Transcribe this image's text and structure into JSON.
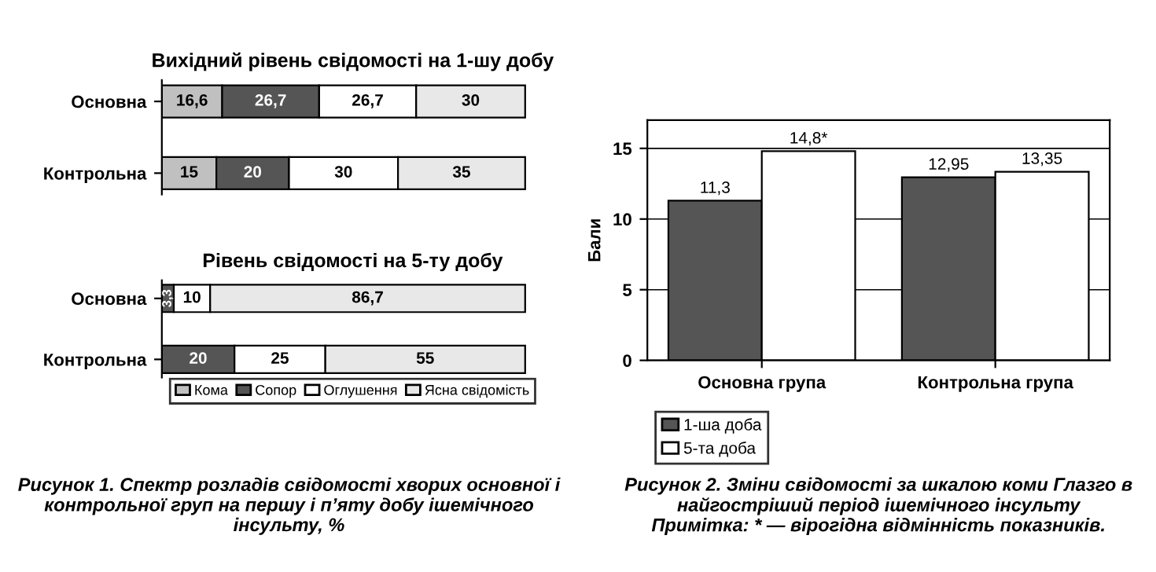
{
  "chart_data": [
    {
      "type": "bar",
      "orientation": "horizontal",
      "stacked": true,
      "title": "Вихідний рівень свідомості на 1-шу добу",
      "categories": [
        "Основна",
        "Контрольна"
      ],
      "tick_labels": "y",
      "legend": "bottom",
      "series": [
        {
          "name": "Кома",
          "color": "#c0c0c0",
          "values": [
            16.6,
            15
          ],
          "value_labels": [
            "16,6",
            "15"
          ]
        },
        {
          "name": "Сопор",
          "color": "#555555",
          "values": [
            26.7,
            20
          ],
          "value_labels": [
            "26,7",
            "20"
          ]
        },
        {
          "name": "Оглушення",
          "color": "#ffffff",
          "values": [
            26.7,
            30
          ],
          "value_labels": [
            "26,7",
            "30"
          ]
        },
        {
          "name": "Ясна свідомість",
          "color": "#e8e8e8",
          "values": [
            30,
            35
          ],
          "value_labels": [
            "30",
            "35"
          ]
        }
      ]
    },
    {
      "type": "bar",
      "orientation": "horizontal",
      "stacked": true,
      "title": "Рівень свідомості на 5-ту добу",
      "categories": [
        "Основна",
        "Контрольна"
      ],
      "tick_labels": "y",
      "series": [
        {
          "color": "#c0c0c0",
          "values": [
            0,
            0
          ],
          "value_labels": [
            null,
            null
          ]
        },
        {
          "color": "#555555",
          "values": [
            3.3,
            20
          ],
          "value_labels": [
            "3,3",
            "20"
          ]
        },
        {
          "color": "#ffffff",
          "values": [
            10,
            25
          ],
          "value_labels": [
            "10",
            "25"
          ]
        },
        {
          "color": "#e8e8e8",
          "values": [
            86.7,
            55
          ],
          "value_labels": [
            "86,7",
            "55"
          ]
        }
      ],
      "annotations": [
        "Рисунок 1. Спектр розладів свідомості хворих основної і контрольної груп на першу і п’яту добу ішемічного інсульту, %"
      ]
    },
    {
      "type": "bar",
      "categories": [
        "Основна група",
        "Контрольна група"
      ],
      "ylabel": "Бали",
      "ylim": [
        0,
        17
      ],
      "yticks": [
        0,
        5,
        10,
        15
      ],
      "grid": "y",
      "legend": "bottom left",
      "series": [
        {
          "name": "1-ша доба",
          "color": "#555555",
          "values": [
            11.3,
            12.95
          ],
          "value_labels": [
            "11,3",
            "12,95"
          ]
        },
        {
          "name": "5-та доба",
          "color": "#ffffff",
          "values": [
            14.8,
            13.35
          ],
          "value_labels": [
            "14,8*",
            "13,35"
          ]
        }
      ],
      "annotations": [
        "Рисунок 2. Зміни свідомості за шкалою коми Глазго в найгостріший період ішемічного інсульту",
        "Примітка: * — вірогідна відмінність показників."
      ]
    }
  ]
}
